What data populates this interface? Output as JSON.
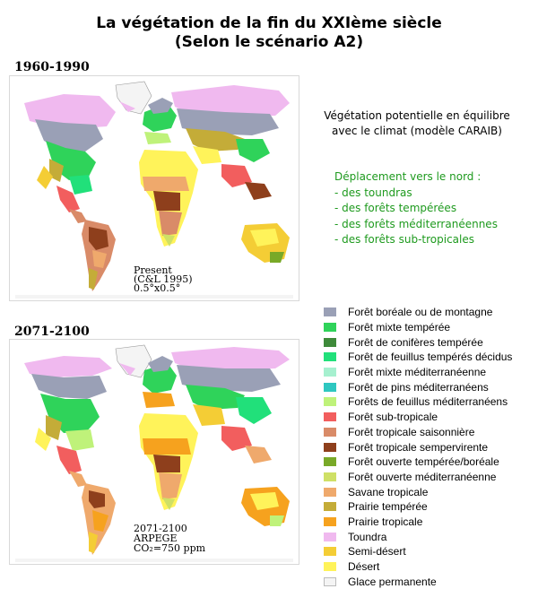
{
  "header": {
    "title_line1": "La végétation de la fin du XXIème siècle",
    "title_line2": "(Selon le scénario A2)"
  },
  "maps": [
    {
      "period_label": "1960-1990",
      "caption_lines": [
        "Present",
        "(C&L 1995)",
        "0.5°x0.5°"
      ]
    },
    {
      "period_label": "2071-2100",
      "caption_lines": [
        "2071-2100",
        "ARPEGE",
        "CO₂=750 ppm"
      ]
    }
  ],
  "description": {
    "line1": "Végétation potentielle en équilibre",
    "line2": "avec le climat (modèle CARAIB)"
  },
  "northward": {
    "heading": "Déplacement vers le nord :",
    "items": [
      "- des toundras",
      "- des forêts tempérées",
      "- des forêts méditerranéennes",
      "- des forêts sub-tropicales"
    ]
  },
  "legend": [
    {
      "label": "Forêt boréale ou de montagne",
      "color": "#9aa0b6"
    },
    {
      "label": "Forêt mixte tempérée",
      "color": "#2fd35a"
    },
    {
      "label": "Forêt de conifères tempérée",
      "color": "#3e8a3a"
    },
    {
      "label": "Forêt de feuillus tempérés décidus",
      "color": "#21e07a"
    },
    {
      "label": "Forêt mixte méditerranéenne",
      "color": "#a6f0cf"
    },
    {
      "label": "Forêt de pins méditerranéens",
      "color": "#2ec7c0"
    },
    {
      "label": "Forêts de feuillus méditerranéens",
      "color": "#bff27a"
    },
    {
      "label": "Forêt sub-tropicale",
      "color": "#f25e5e"
    },
    {
      "label": "Forêt tropicale saisonnière",
      "color": "#d98b68"
    },
    {
      "label": "Forêt tropicale sempervirente",
      "color": "#8e3f1c"
    },
    {
      "label": "Forêt ouverte tempérée/boréale",
      "color": "#79a928"
    },
    {
      "label": "Forêt ouverte méditerranéenne",
      "color": "#cfe066"
    },
    {
      "label": "Savane tropicale",
      "color": "#efa96c"
    },
    {
      "label": "Prairie tempérée",
      "color": "#c4ac38"
    },
    {
      "label": "Prairie tropicale",
      "color": "#f6a21e"
    },
    {
      "label": "Toundra",
      "color": "#f0b9ef"
    },
    {
      "label": "Semi-désert",
      "color": "#f4cd35"
    },
    {
      "label": "Désert",
      "color": "#fff35a"
    },
    {
      "label": "Glace permanente",
      "color": "#f4f4f4"
    }
  ]
}
